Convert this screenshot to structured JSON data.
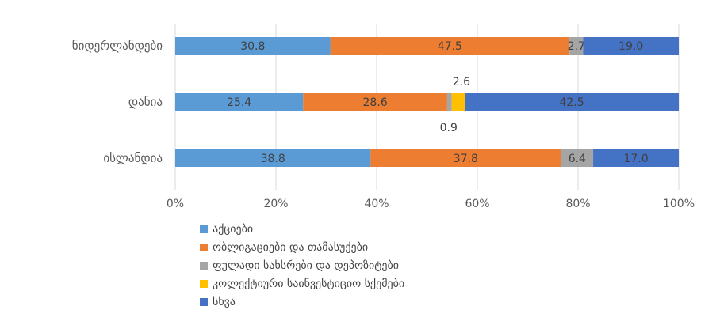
{
  "chart_data": {
    "type": "bar",
    "orientation": "horizontal",
    "stacked": "percent",
    "title": "",
    "categories": [
      "ნიდერლანდები",
      "დანია",
      "ისლანდია"
    ],
    "series": [
      {
        "name": "აქციები",
        "color": "#5B9BD5",
        "values": [
          30.8,
          25.4,
          38.8
        ]
      },
      {
        "name": "ობლიგაციები და თამასუქები",
        "color": "#ED7D31",
        "values": [
          47.5,
          28.6,
          37.8
        ]
      },
      {
        "name": "ფულადი სახსრები და დეპოზიტები",
        "color": "#A5A5A5",
        "values": [
          2.7,
          0.9,
          6.4
        ]
      },
      {
        "name": "კოლექტიური საინვესტიციო სქემები",
        "color": "#FFC000",
        "values": [
          0.0,
          2.6,
          0.0
        ]
      },
      {
        "name": "სხვა",
        "color": "#4472C4",
        "values": [
          19.0,
          42.5,
          17.0
        ]
      }
    ],
    "data_labels": [
      [
        "30.8",
        "47.5",
        "2.7",
        "",
        "19.0"
      ],
      [
        "25.4",
        "28.6",
        "0.9",
        "2.6",
        "42.5"
      ],
      [
        "38.8",
        "37.8",
        "6.4",
        "",
        "17.0"
      ]
    ],
    "x_ticks": [
      "0%",
      "20%",
      "40%",
      "60%",
      "80%",
      "100%"
    ],
    "xlim": [
      0,
      100
    ],
    "grid": "vertical",
    "legend_position": "bottom-left"
  }
}
